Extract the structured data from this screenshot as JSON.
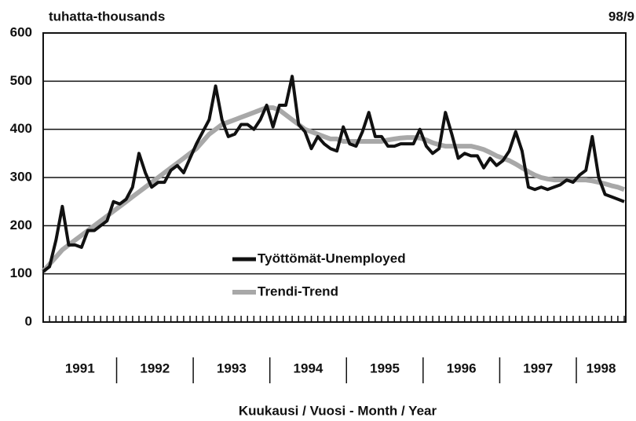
{
  "chart_data": {
    "type": "line",
    "unit_label": "tuhatta-thousands",
    "corner_label": "98/9",
    "xlabel": "Kuukausi / Vuosi - Month / Year",
    "categories": [
      "1991",
      null,
      null,
      null,
      null,
      null,
      null,
      null,
      null,
      null,
      null,
      null,
      "1992",
      null,
      null,
      null,
      null,
      null,
      null,
      null,
      null,
      null,
      null,
      null,
      "1993",
      null,
      null,
      null,
      null,
      null,
      null,
      null,
      null,
      null,
      null,
      null,
      "1994",
      null,
      null,
      null,
      null,
      null,
      null,
      null,
      null,
      null,
      null,
      null,
      "1995",
      null,
      null,
      null,
      null,
      null,
      null,
      null,
      null,
      null,
      null,
      null,
      "1996",
      null,
      null,
      null,
      null,
      null,
      null,
      null,
      null,
      null,
      null,
      null,
      "1997",
      null,
      null,
      null,
      null,
      null,
      null,
      null,
      null,
      null,
      null,
      null,
      "1998",
      null,
      null,
      null,
      null,
      null,
      null,
      null
    ],
    "series": [
      {
        "name": "Työttömät-Unemployed",
        "color": "#111111",
        "values": [
          105,
          115,
          170,
          240,
          160,
          160,
          155,
          190,
          190,
          200,
          210,
          250,
          245,
          255,
          280,
          350,
          310,
          280,
          290,
          290,
          315,
          325,
          310,
          340,
          370,
          395,
          420,
          490,
          420,
          385,
          390,
          410,
          410,
          400,
          420,
          450,
          405,
          450,
          450,
          510,
          410,
          395,
          360,
          385,
          370,
          360,
          355,
          405,
          370,
          365,
          395,
          435,
          385,
          385,
          365,
          365,
          370,
          370,
          370,
          400,
          365,
          350,
          360,
          435,
          390,
          340,
          350,
          345,
          345,
          320,
          340,
          325,
          335,
          355,
          395,
          355,
          280,
          275,
          280,
          275,
          280,
          285,
          295,
          290,
          305,
          315,
          385,
          300,
          265,
          260,
          255,
          250
        ]
      },
      {
        "name": "Trendi-Trend",
        "color": "#a8a8a8",
        "values": [
          105,
          120,
          135,
          150,
          160,
          170,
          180,
          190,
          200,
          210,
          220,
          230,
          240,
          250,
          260,
          270,
          280,
          290,
          300,
          310,
          320,
          330,
          340,
          350,
          360,
          375,
          390,
          400,
          410,
          415,
          420,
          425,
          430,
          435,
          440,
          445,
          445,
          440,
          430,
          420,
          410,
          400,
          395,
          390,
          385,
          380,
          380,
          375,
          375,
          375,
          375,
          375,
          375,
          375,
          378,
          380,
          382,
          383,
          383,
          382,
          378,
          372,
          368,
          365,
          365,
          365,
          365,
          365,
          362,
          358,
          352,
          345,
          340,
          335,
          328,
          320,
          312,
          305,
          300,
          297,
          295,
          295,
          295,
          295,
          295,
          295,
          293,
          290,
          287,
          283,
          280,
          275
        ]
      }
    ],
    "ylim": [
      0,
      600
    ],
    "yticks": [
      0,
      100,
      200,
      300,
      400,
      500,
      600
    ],
    "grid": true
  }
}
